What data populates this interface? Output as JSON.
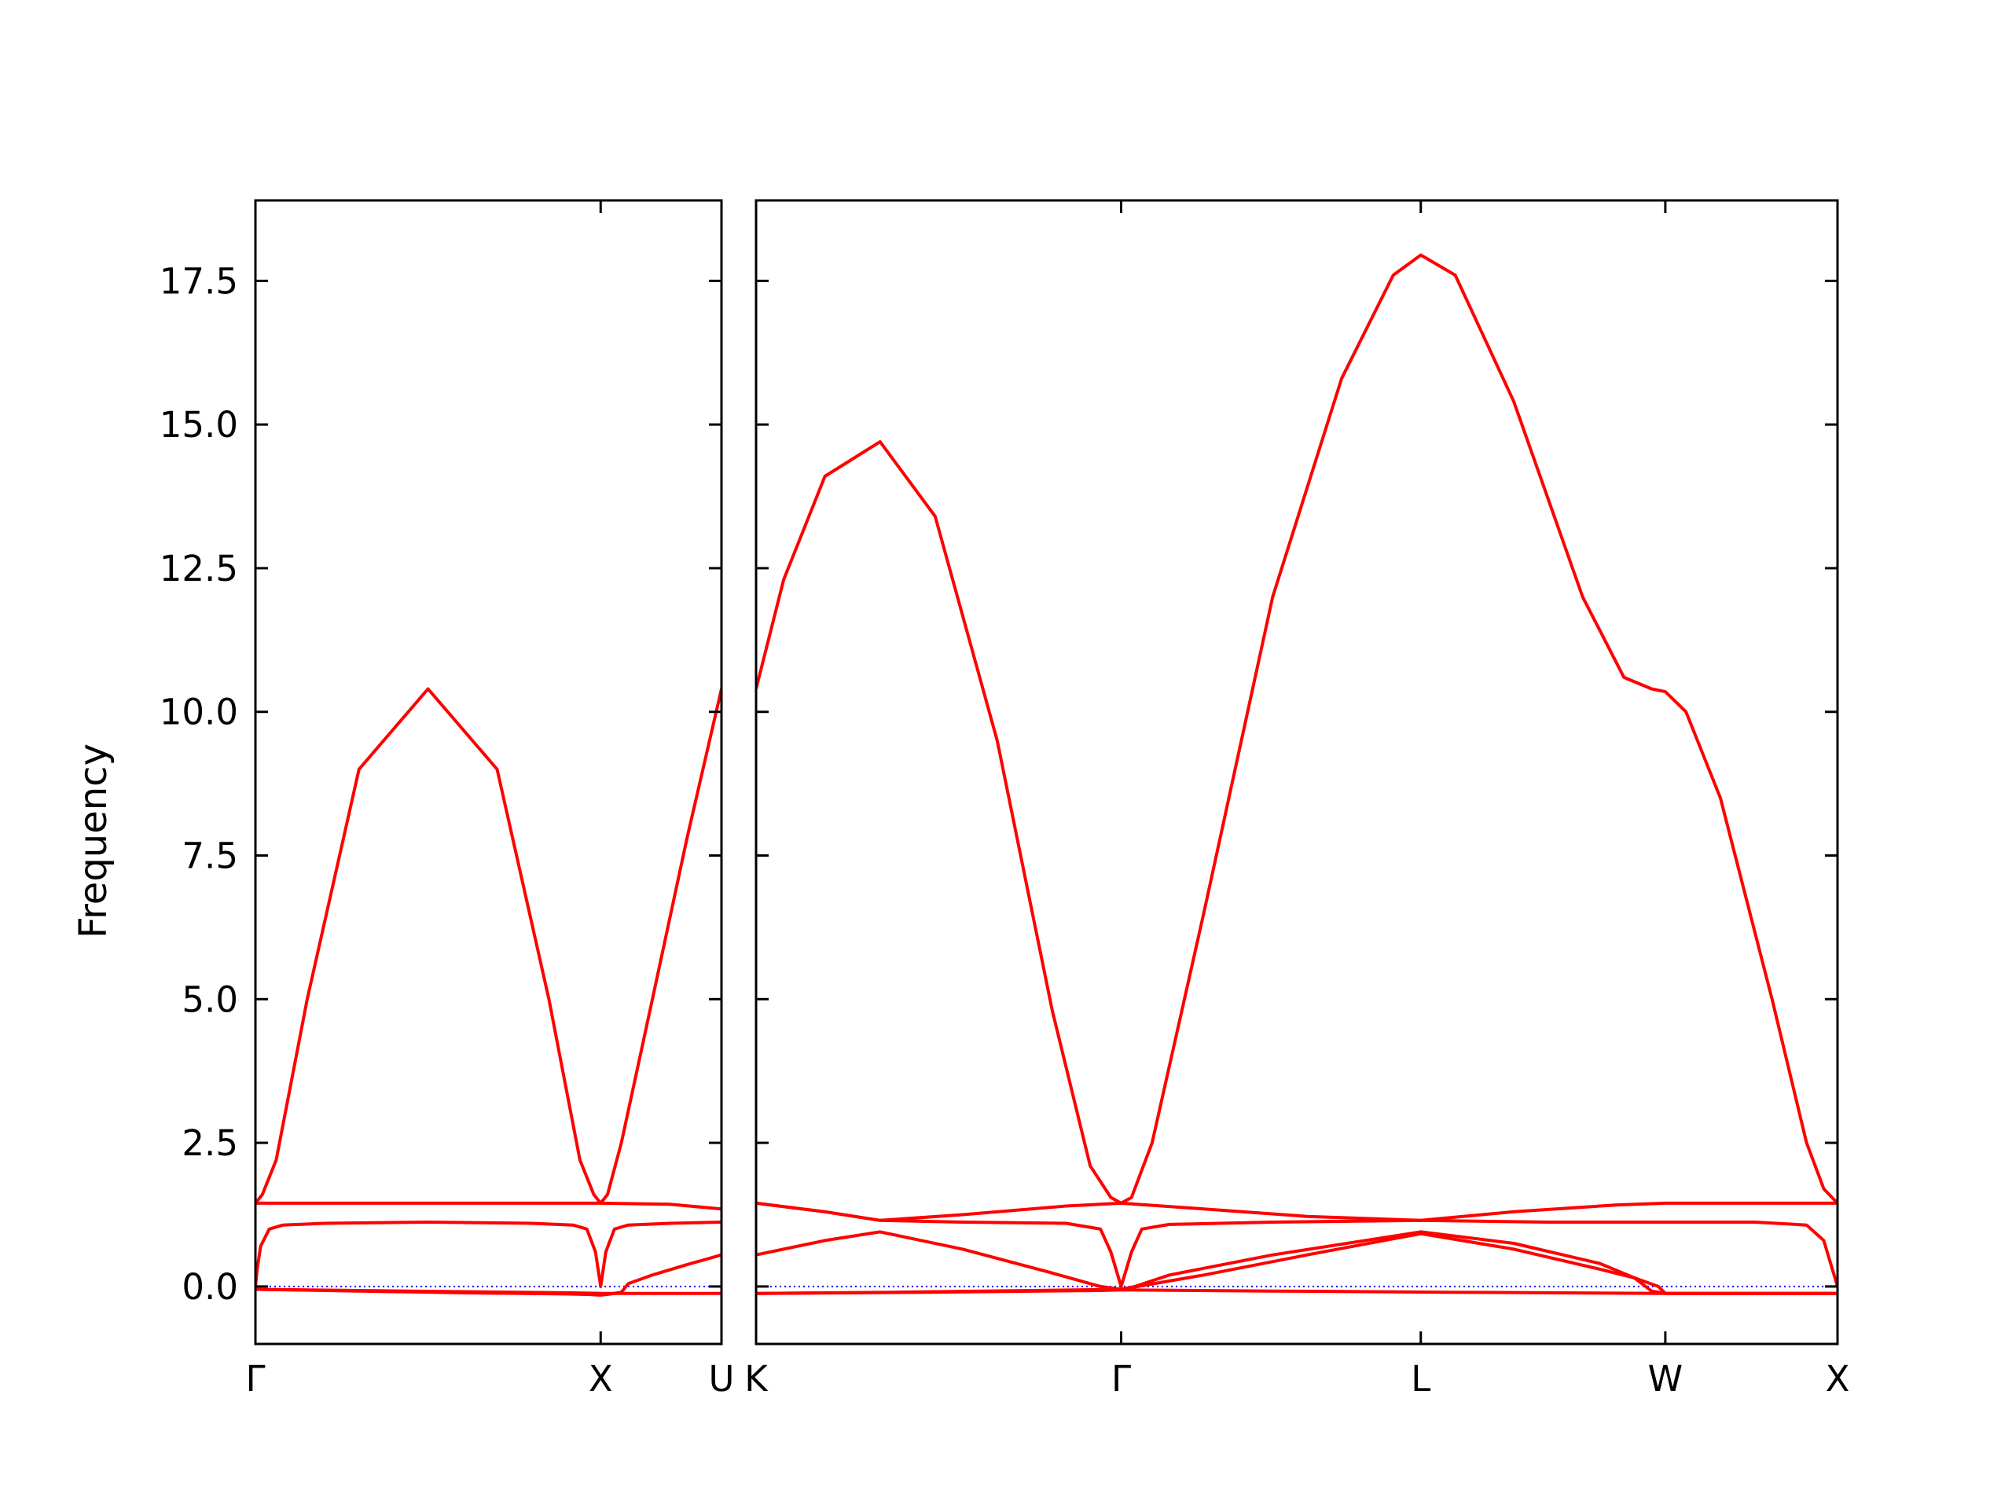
{
  "chart_data": {
    "type": "line",
    "ylabel": "Frequency",
    "ylim": [
      -1.0,
      18.9
    ],
    "yticks": [
      0.0,
      2.5,
      5.0,
      7.5,
      10.0,
      12.5,
      15.0,
      17.5
    ],
    "ytick_labels": [
      "0.0",
      "2.5",
      "5.0",
      "7.5",
      "10.0",
      "12.5",
      "15.0",
      "17.5"
    ],
    "series_color": "#ff0000",
    "zero_line_color": "#0000ff",
    "panels": [
      {
        "xlim": [
          0.0,
          1.35
        ],
        "xticks": [
          0.0,
          1.0,
          1.35
        ],
        "xtick_labels": [
          "Γ",
          "X",
          "U"
        ],
        "bands": [
          {
            "x": [
              0,
              0.02,
              0.06,
              0.15,
              0.3,
              0.5,
              0.7,
              0.85,
              0.94,
              0.98,
              1.0,
              1.02,
              1.06,
              1.15,
              1.25,
              1.35
            ],
            "y": [
              1.45,
              1.6,
              2.2,
              5.0,
              9.0,
              10.4,
              9.0,
              5.0,
              2.2,
              1.6,
              1.45,
              1.6,
              2.5,
              5.0,
              7.8,
              10.4
            ]
          },
          {
            "x": [
              0,
              0.2,
              0.4,
              0.6,
              0.8,
              1.0,
              1.2,
              1.35
            ],
            "y": [
              1.45,
              1.45,
              1.45,
              1.45,
              1.45,
              1.45,
              1.43,
              1.35
            ]
          },
          {
            "x": [
              0,
              0.005,
              0.015,
              0.04,
              0.08,
              0.2,
              0.5,
              0.8,
              0.92,
              0.96,
              0.985,
              1.0,
              1.015,
              1.04,
              1.08,
              1.2,
              1.35
            ],
            "y": [
              0.0,
              0.3,
              0.7,
              1.0,
              1.07,
              1.1,
              1.12,
              1.1,
              1.07,
              1.0,
              0.6,
              0.0,
              0.6,
              1.0,
              1.07,
              1.1,
              1.12
            ]
          },
          {
            "x": [
              0,
              0.3,
              0.6,
              0.9,
              0.97,
              1.0,
              1.03,
              1.06,
              1.08,
              1.15,
              1.25,
              1.35
            ],
            "y": [
              -0.05,
              -0.08,
              -0.11,
              -0.13,
              -0.14,
              -0.15,
              -0.13,
              -0.1,
              0.05,
              0.2,
              0.38,
              0.55
            ]
          },
          {
            "x": [
              0,
              0.3,
              0.6,
              0.9,
              1.0,
              1.1,
              1.2,
              1.35
            ],
            "y": [
              -0.05,
              -0.07,
              -0.09,
              -0.11,
              -0.12,
              -0.12,
              -0.12,
              -0.12
            ]
          }
        ]
      },
      {
        "xlim": [
          0.0,
          3.14
        ],
        "xticks": [
          0.0,
          1.06,
          1.93,
          2.64,
          3.14
        ],
        "xtick_labels": [
          "K",
          "Γ",
          "L",
          "W",
          "X"
        ],
        "bands": [
          {
            "x": [
              0,
              0.08,
              0.2,
              0.36,
              0.52,
              0.7,
              0.86,
              0.97,
              1.03,
              1.06,
              1.09,
              1.15,
              1.3,
              1.5,
              1.7,
              1.85,
              1.93,
              2.03,
              2.2,
              2.4,
              2.52,
              2.6,
              2.64,
              2.7,
              2.8,
              2.95,
              3.05,
              3.1,
              3.14
            ],
            "y": [
              10.4,
              12.3,
              14.1,
              14.7,
              13.4,
              9.5,
              4.8,
              2.1,
              1.55,
              1.45,
              1.55,
              2.5,
              6.5,
              12.0,
              15.8,
              17.6,
              17.95,
              17.6,
              15.4,
              12.0,
              10.6,
              10.4,
              10.35,
              10.0,
              8.5,
              5.0,
              2.5,
              1.7,
              1.45
            ]
          },
          {
            "x": [
              0,
              0.2,
              0.36,
              0.6,
              0.9,
              1.06,
              1.3,
              1.6,
              1.93,
              2.2,
              2.5,
              2.64,
              2.9,
              3.14
            ],
            "y": [
              1.45,
              1.3,
              1.15,
              1.25,
              1.4,
              1.45,
              1.35,
              1.22,
              1.15,
              1.3,
              1.42,
              1.45,
              1.45,
              1.45
            ]
          },
          {
            "x": [
              0,
              0.2,
              0.36,
              0.6,
              0.9,
              1.0,
              1.03,
              1.06,
              1.09,
              1.12,
              1.2,
              1.5,
              1.93,
              2.3,
              2.64,
              2.9,
              3.05,
              3.1,
              3.14
            ],
            "y": [
              1.45,
              1.3,
              1.15,
              1.12,
              1.1,
              1.0,
              0.6,
              0.0,
              0.6,
              1.0,
              1.08,
              1.12,
              1.15,
              1.12,
              1.12,
              1.12,
              1.07,
              0.8,
              0.0
            ]
          },
          {
            "x": [
              0,
              0.2,
              0.36,
              0.6,
              0.85,
              1.0,
              1.06,
              1.1,
              1.2,
              1.5,
              1.93,
              2.2,
              2.45,
              2.55,
              2.6,
              2.64,
              2.8,
              3.14
            ],
            "y": [
              0.55,
              0.8,
              0.95,
              0.65,
              0.25,
              0.0,
              -0.05,
              0.0,
              0.2,
              0.55,
              0.95,
              0.75,
              0.4,
              0.15,
              -0.08,
              -0.12,
              -0.12,
              -0.12
            ]
          },
          {
            "x": [
              0,
              0.4,
              0.8,
              1.06,
              1.3,
              1.6,
              1.93,
              2.2,
              2.45,
              2.55,
              2.62,
              2.64,
              2.8,
              3.14
            ],
            "y": [
              -0.12,
              -0.1,
              -0.07,
              -0.05,
              0.2,
              0.55,
              0.92,
              0.65,
              0.3,
              0.15,
              0.0,
              -0.12,
              -0.12,
              -0.12
            ]
          },
          {
            "x": [
              0,
              0.5,
              1.0,
              1.06,
              1.5,
              2.0,
              2.64,
              3.14
            ],
            "y": [
              -0.12,
              -0.1,
              -0.07,
              -0.06,
              -0.08,
              -0.1,
              -0.12,
              -0.12
            ]
          }
        ]
      }
    ]
  }
}
